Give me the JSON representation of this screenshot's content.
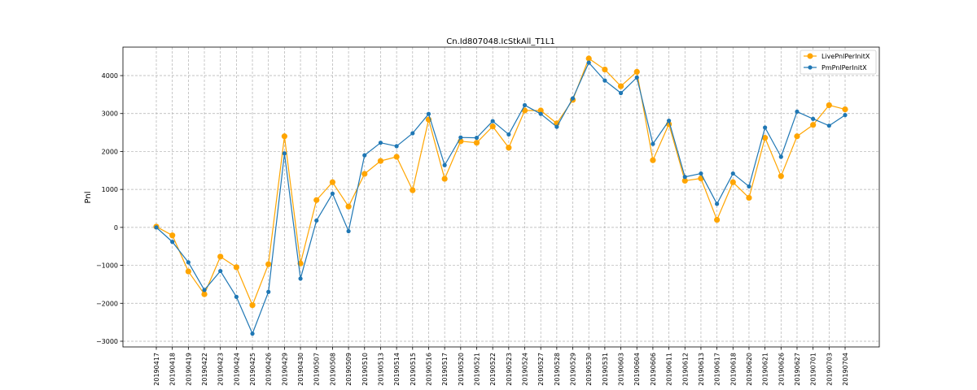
{
  "chart_data": {
    "type": "line",
    "title": "Cn.Id807048.IcStkAll_T1L1",
    "xlabel": "",
    "ylabel": "Pnl",
    "ylim": [
      -3150,
      4750
    ],
    "yticks": [
      -3000,
      -2000,
      -1000,
      0,
      1000,
      2000,
      3000,
      4000
    ],
    "grid": true,
    "legend_position": "top-right",
    "categories": [
      "20190417",
      "20190418",
      "20190419",
      "20190422",
      "20190423",
      "20190424",
      "20190425",
      "20190426",
      "20190429",
      "20190430",
      "20190507",
      "20190508",
      "20190509",
      "20190510",
      "20190513",
      "20190514",
      "20190515",
      "20190516",
      "20190517",
      "20190520",
      "20190521",
      "20190522",
      "20190523",
      "20190524",
      "20190527",
      "20190528",
      "20190529",
      "20190530",
      "20190531",
      "20190603",
      "20190604",
      "20190606",
      "20190611",
      "20190612",
      "20190613",
      "20190617",
      "20190618",
      "20190620",
      "20190621",
      "20190626",
      "20190627",
      "20190701",
      "20190703",
      "20190704"
    ],
    "series": [
      {
        "name": "LivePnlPerInitX",
        "color": "#ffa500",
        "values": [
          20,
          -210,
          -1160,
          -1760,
          -770,
          -1050,
          -2050,
          -970,
          2400,
          -950,
          720,
          1190,
          550,
          1410,
          1750,
          1860,
          980,
          2840,
          1280,
          2270,
          2230,
          2660,
          2100,
          3080,
          3080,
          2740,
          3360,
          4450,
          4160,
          3720,
          4100,
          1770,
          2720,
          1230,
          1290,
          200,
          1190,
          780,
          2360,
          1350,
          2400,
          2700,
          3220,
          3110
        ]
      },
      {
        "name": "PmPnlPerInitX",
        "color": "#1f77b4",
        "values": [
          0,
          -380,
          -920,
          -1650,
          -1150,
          -1830,
          -2800,
          -1700,
          1950,
          -1350,
          180,
          890,
          -100,
          1900,
          2230,
          2140,
          2480,
          2990,
          1640,
          2370,
          2360,
          2800,
          2450,
          3220,
          2990,
          2650,
          3400,
          4340,
          3870,
          3540,
          3950,
          2200,
          2810,
          1330,
          1420,
          620,
          1420,
          1080,
          2630,
          1860,
          3050,
          2860,
          2680,
          2960
        ]
      }
    ]
  }
}
